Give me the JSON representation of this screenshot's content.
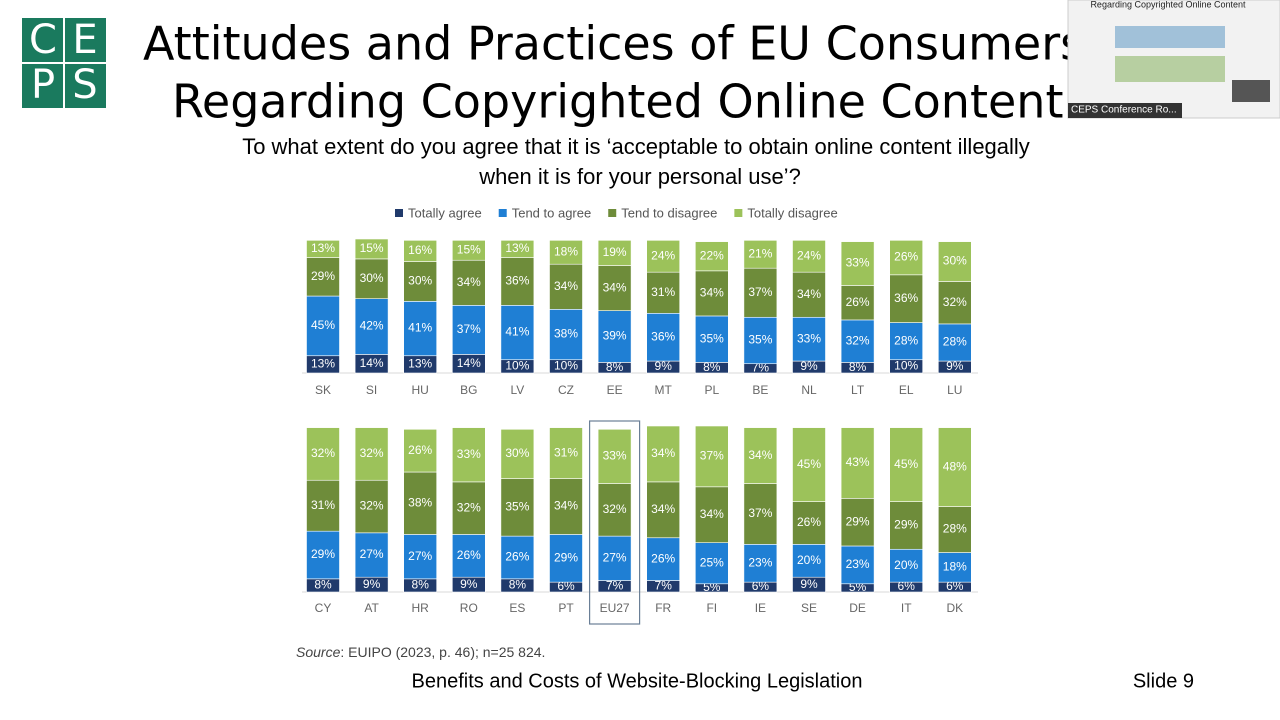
{
  "logo": [
    "C",
    "E",
    "P",
    "S"
  ],
  "title": [
    "Attitudes and Practices of EU Consumers",
    "Regarding Copyrighted Online Content"
  ],
  "question": [
    "To what extent do you agree that it is ‘acceptable to obtain online content illegally",
    "when it is for your personal use’?"
  ],
  "source": {
    "label": "Source",
    "text": ": EUIPO (2023, p. 46); n=25 824."
  },
  "footer": {
    "text": "Benefits and Costs of Website-Blocking Legislation",
    "slide": "Slide 9"
  },
  "thumbnail": {
    "title": "Regarding Copyrighted Online Content",
    "caption": "CEPS Conference Ro..."
  },
  "chart_data": [
    {
      "type": "bar",
      "stacked": true,
      "categories": [
        "SK",
        "SI",
        "HU",
        "BG",
        "LV",
        "CZ",
        "EE",
        "MT",
        "PL",
        "BE",
        "NL",
        "LT",
        "EL",
        "LU"
      ],
      "series": [
        {
          "name": "Totally agree",
          "color": "#203a6b",
          "values": [
            13,
            14,
            13,
            14,
            10,
            10,
            8,
            9,
            8,
            7,
            9,
            8,
            10,
            9
          ],
          "value_labels": [
            "13%",
            "14%",
            "13%",
            "14%",
            "10%",
            "10%",
            "8%",
            "9%",
            "8%",
            "7%",
            "9%",
            "8%",
            "10%",
            "9%"
          ]
        },
        {
          "name": "Tend to agree",
          "color": "#1f7fd4",
          "values": [
            45,
            42,
            41,
            37,
            41,
            38,
            39,
            36,
            35,
            35,
            33,
            32,
            28,
            28
          ],
          "value_labels": [
            "45%",
            "42%",
            "41%",
            "37%",
            "41%",
            "38%",
            "39%",
            "36%",
            "35%",
            "35%",
            "33%",
            "32%",
            "28%",
            "28%"
          ]
        },
        {
          "name": "Tend to disagree",
          "color": "#6e8c3a",
          "values": [
            29,
            30,
            30,
            34,
            36,
            34,
            34,
            31,
            34,
            37,
            34,
            26,
            36,
            32
          ],
          "value_labels": [
            "29%",
            "30%",
            "30%",
            "34%",
            "36%",
            "34%",
            "34%",
            "31%",
            "34%",
            "37%",
            "34%",
            "26%",
            "36%",
            "32%"
          ]
        },
        {
          "name": "Totally disagree",
          "color": "#9cc25a",
          "values": [
            13,
            15,
            16,
            15,
            13,
            18,
            19,
            24,
            22,
            21,
            24,
            33,
            26,
            30
          ],
          "value_labels": [
            "13%",
            "15%",
            "16%",
            "15%",
            "13%",
            "18%",
            "19%",
            "24%",
            "22%",
            "21%",
            "24%",
            "33%",
            "26%",
            "30%"
          ]
        }
      ]
    },
    {
      "type": "bar",
      "stacked": true,
      "highlighted_category": "EU27",
      "categories": [
        "CY",
        "AT",
        "HR",
        "RO",
        "ES",
        "PT",
        "EU27",
        "FR",
        "FI",
        "IE",
        "SE",
        "DE",
        "IT",
        "DK"
      ],
      "series": [
        {
          "color": "#203a6b",
          "values": [
            8,
            9,
            8,
            9,
            8,
            6,
            7,
            7,
            5,
            6,
            9,
            5,
            6,
            6
          ],
          "value_labels": [
            "8%",
            "9%",
            "8%",
            "9%",
            "8%",
            "6%",
            "7%",
            "7%",
            "5%",
            "6%",
            "9%",
            "5%",
            "6%",
            "6%"
          ]
        },
        {
          "color": "#1f7fd4",
          "values": [
            29,
            27,
            27,
            26,
            26,
            29,
            27,
            26,
            25,
            23,
            20,
            23,
            20,
            18
          ],
          "value_labels": [
            "29%",
            "27%",
            "27%",
            "26%",
            "26%",
            "29%",
            "27%",
            "26%",
            "25%",
            "23%",
            "20%",
            "23%",
            "20%",
            "18%"
          ]
        },
        {
          "color": "#6e8c3a",
          "values": [
            31,
            32,
            38,
            32,
            35,
            34,
            32,
            34,
            34,
            37,
            26,
            29,
            29,
            28
          ],
          "value_labels": [
            "31%",
            "32%",
            "38%",
            "32%",
            "35%",
            "34%",
            "32%",
            "34%",
            "34%",
            "37%",
            "26%",
            "29%",
            "29%",
            "28%"
          ]
        },
        {
          "color": "#9cc25a",
          "values": [
            32,
            32,
            26,
            33,
            30,
            31,
            33,
            34,
            37,
            34,
            45,
            43,
            45,
            48
          ],
          "value_labels": [
            "32%",
            "32%",
            "26%",
            "33%",
            "30%",
            "31%",
            "33%",
            "34%",
            "37%",
            "34%",
            "45%",
            "43%",
            "45%",
            "48%"
          ]
        }
      ]
    }
  ]
}
